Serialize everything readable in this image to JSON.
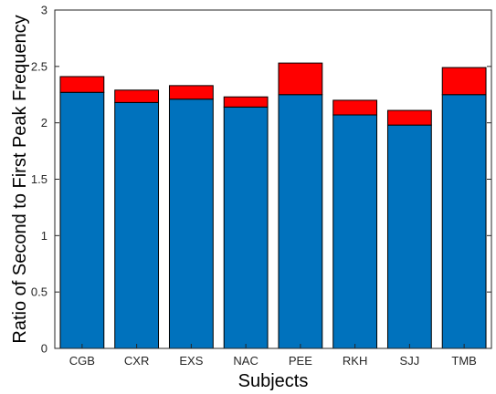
{
  "chart_data": {
    "type": "bar",
    "stacked": true,
    "xlabel": "Subjects",
    "ylabel": "Ratio of Second to First Peak Frequency",
    "ylim": [
      0,
      3
    ],
    "yticks": [
      0,
      0.5,
      1,
      1.5,
      2,
      2.5,
      3
    ],
    "ytick_labels": [
      "0",
      "0.5",
      "1",
      "1.5",
      "2",
      "2.5",
      "3"
    ],
    "grid": false,
    "categories": [
      "CGB",
      "CXR",
      "EXS",
      "NAC",
      "PEE",
      "RKH",
      "SJJ",
      "TMB"
    ],
    "series": [
      {
        "color": "#0072BD",
        "values": [
          2.27,
          2.18,
          2.21,
          2.14,
          2.25,
          2.07,
          1.98,
          2.25
        ]
      },
      {
        "color": "#FF0000",
        "values": [
          0.14,
          0.11,
          0.12,
          0.09,
          0.28,
          0.13,
          0.13,
          0.24
        ]
      }
    ]
  }
}
